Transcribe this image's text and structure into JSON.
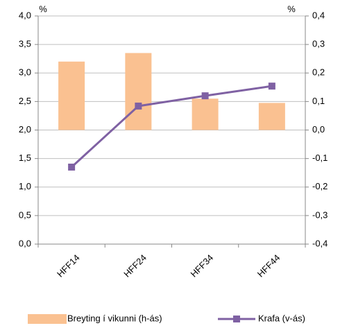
{
  "chart_data": {
    "type": "bar_line",
    "y_label": "%",
    "y2_label": "%",
    "categories": [
      "HFF14",
      "HFF24",
      "HFF34",
      "HFF44"
    ],
    "series": [
      {
        "name": "Breyting í vikunni (h-ás)",
        "type": "bar",
        "axis": "y2",
        "color": "#fac191",
        "values": [
          0.24,
          0.27,
          0.11,
          0.095
        ]
      },
      {
        "name": "Krafa (v-ás)",
        "type": "line",
        "axis": "y",
        "color": "#7f61a3",
        "values": [
          1.35,
          2.42,
          2.6,
          2.77
        ]
      }
    ],
    "ylim": [
      0,
      4
    ],
    "yticks": [
      {
        "value": 0,
        "label": "0,0"
      },
      {
        "value": 0.5,
        "label": "0,5"
      },
      {
        "value": 1,
        "label": "1,0"
      },
      {
        "value": 1.5,
        "label": "1,5"
      },
      {
        "value": 2,
        "label": "2,0"
      },
      {
        "value": 2.5,
        "label": "2,5"
      },
      {
        "value": 3,
        "label": "3,0"
      },
      {
        "value": 3.5,
        "label": "3,5"
      },
      {
        "value": 4,
        "label": "4,0"
      }
    ],
    "y2lim": [
      -0.4,
      0.4
    ],
    "y2ticks": [
      {
        "value": -0.4,
        "label": "-0,4"
      },
      {
        "value": -0.3,
        "label": "-0,3"
      },
      {
        "value": -0.2,
        "label": "-0,2"
      },
      {
        "value": -0.1,
        "label": "-0,1"
      },
      {
        "value": 0,
        "label": "0,0"
      },
      {
        "value": 0.1,
        "label": "0,1"
      },
      {
        "value": 0.2,
        "label": "0,2"
      },
      {
        "value": 0.3,
        "label": "0,3"
      },
      {
        "value": 0.4,
        "label": "0,4"
      }
    ],
    "grid": true
  }
}
